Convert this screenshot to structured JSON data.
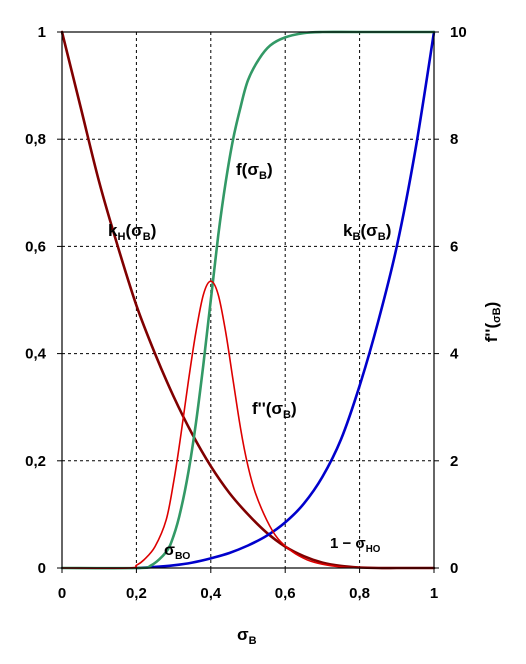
{
  "chart_data": {
    "type": "line",
    "x_axis": {
      "range": [
        0,
        1
      ],
      "ticks": [
        0,
        0.2,
        0.4,
        0.6,
        0.8,
        1
      ],
      "tick_labels": [
        "0",
        "0,2",
        "0,4",
        "0,6",
        "0,8",
        "1"
      ],
      "label_main": "σ",
      "label_sub": "В"
    },
    "y_left": {
      "range": [
        0,
        1
      ],
      "ticks": [
        0,
        0.2,
        0.4,
        0.6,
        0.8,
        1
      ],
      "tick_labels": [
        "0",
        "0,2",
        "0,4",
        "0,6",
        "0,8",
        "1"
      ]
    },
    "y_right": {
      "range": [
        0,
        10
      ],
      "ticks": [
        0,
        2,
        4,
        6,
        8,
        10
      ],
      "tick_labels": [
        "0",
        "2",
        "4",
        "6",
        "8",
        "10"
      ],
      "label_main": "f''(",
      "label_sub": "σВ",
      "label_end": ")"
    },
    "grid": true,
    "series": [
      {
        "key": "kn",
        "color": "#800000",
        "axis": "left",
        "x": [
          0,
          0.05,
          0.1,
          0.15,
          0.2,
          0.25,
          0.3,
          0.35,
          0.4,
          0.45,
          0.5,
          0.55,
          0.6,
          0.65,
          0.7,
          0.75,
          0.8,
          0.85,
          0.9,
          0.95,
          1
        ],
        "y": [
          1,
          0.86,
          0.72,
          0.6,
          0.49,
          0.4,
          0.32,
          0.25,
          0.19,
          0.14,
          0.1,
          0.066,
          0.04,
          0.022,
          0.01,
          0.004,
          0.001,
          0,
          0,
          0,
          0
        ]
      },
      {
        "key": "kv",
        "color": "#0000cc",
        "axis": "left",
        "x": [
          0.2,
          0.25,
          0.3,
          0.35,
          0.4,
          0.45,
          0.5,
          0.55,
          0.6,
          0.65,
          0.7,
          0.75,
          0.8,
          0.85,
          0.9,
          0.95,
          1
        ],
        "y": [
          0,
          0.002,
          0.005,
          0.01,
          0.018,
          0.028,
          0.042,
          0.06,
          0.085,
          0.12,
          0.17,
          0.24,
          0.34,
          0.46,
          0.6,
          0.78,
          1
        ]
      },
      {
        "key": "f",
        "color": "#339966",
        "axis": "left",
        "x": [
          0,
          0.2,
          0.24,
          0.28,
          0.3,
          0.32,
          0.34,
          0.36,
          0.38,
          0.4,
          0.42,
          0.44,
          0.46,
          0.48,
          0.5,
          0.53,
          0.56,
          0.6,
          0.65,
          0.7,
          0.8,
          1
        ],
        "y": [
          0,
          0,
          0.005,
          0.03,
          0.06,
          0.11,
          0.18,
          0.27,
          0.38,
          0.5,
          0.62,
          0.72,
          0.8,
          0.86,
          0.91,
          0.95,
          0.975,
          0.99,
          0.998,
          1,
          1,
          1
        ]
      },
      {
        "key": "fpp",
        "color": "#dd0000",
        "axis": "right",
        "x": [
          0,
          0.18,
          0.2,
          0.22,
          0.25,
          0.28,
          0.3,
          0.32,
          0.34,
          0.36,
          0.38,
          0.4,
          0.42,
          0.44,
          0.46,
          0.48,
          0.5,
          0.52,
          0.55,
          0.58,
          0.62,
          0.66,
          0.7,
          0.75,
          0.8,
          1
        ],
        "y": [
          0,
          0,
          0.05,
          0.15,
          0.4,
          0.9,
          1.6,
          2.5,
          3.5,
          4.4,
          5.1,
          5.35,
          5.1,
          4.4,
          3.5,
          2.6,
          1.9,
          1.4,
          0.9,
          0.55,
          0.3,
          0.15,
          0.07,
          0.02,
          0.005,
          0
        ]
      }
    ],
    "annotations": [
      {
        "key": "kn",
        "main": "k",
        "sub": "Н",
        "arg": "(σ",
        "argsub": "В",
        "close": ")"
      },
      {
        "key": "kv",
        "main": "k",
        "sub": "В",
        "arg": "(σ",
        "argsub": "В",
        "close": ")"
      },
      {
        "key": "f",
        "main": "f",
        "sub": "",
        "arg": "(σ",
        "argsub": "В",
        "close": ")"
      },
      {
        "key": "fpp",
        "main": "f''",
        "sub": "",
        "arg": "(σ",
        "argsub": "В",
        "close": ")"
      },
      {
        "key": "svo",
        "main": "σ",
        "sub": "ВО",
        "arg": "",
        "argsub": "",
        "close": ""
      },
      {
        "key": "sno",
        "main": "1 − σ",
        "sub": "НО",
        "arg": "",
        "argsub": "",
        "close": ""
      }
    ]
  }
}
